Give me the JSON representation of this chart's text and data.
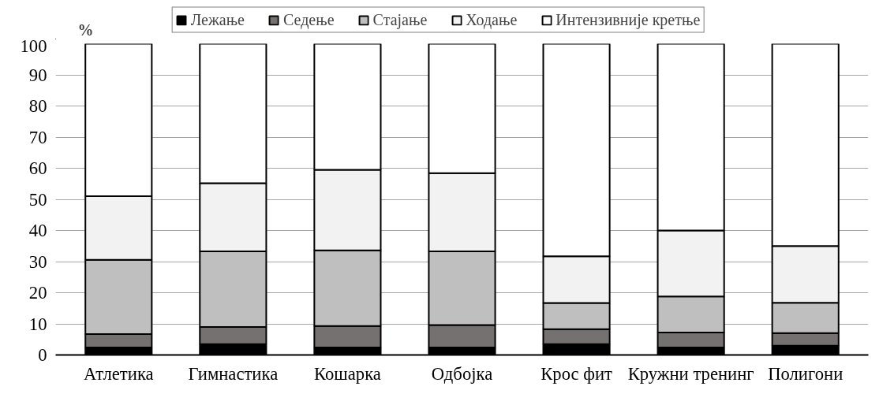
{
  "chart_data": {
    "type": "bar",
    "stacked": true,
    "ylabel": "%",
    "categories": [
      "Атлетика",
      "Гимнастика",
      "Кошарка",
      "Одбојка",
      "Крос фит",
      "Кружни тренинг",
      "Полигони"
    ],
    "series": [
      {
        "name": "Лежање",
        "color": "#000000",
        "values": [
          2.4,
          3.5,
          2.4,
          2.4,
          3.5,
          2.4,
          3.0
        ]
      },
      {
        "name": "Седење",
        "color": "#767171",
        "values": [
          4.3,
          5.5,
          6.9,
          7.2,
          4.8,
          4.8,
          4.0
        ]
      },
      {
        "name": "Стајање",
        "color": "#bfbfbf",
        "values": [
          23.9,
          24.3,
          24.3,
          23.7,
          8.4,
          11.6,
          9.8
        ]
      },
      {
        "name": "Ходање",
        "color": "#f2f2f2",
        "values": [
          20.4,
          21.9,
          25.9,
          25.1,
          15.0,
          21.2,
          18.2
        ]
      },
      {
        "name": "Интензивније кретње",
        "color": "#ffffff",
        "values": [
          49.0,
          44.8,
          40.5,
          41.6,
          68.3,
          60.0,
          65.0
        ]
      }
    ],
    "ylim": [
      0,
      100
    ],
    "yticks": [
      0,
      10,
      20,
      30,
      40,
      50,
      60,
      70,
      80,
      90,
      100
    ],
    "grid": "y",
    "legend": "top"
  }
}
